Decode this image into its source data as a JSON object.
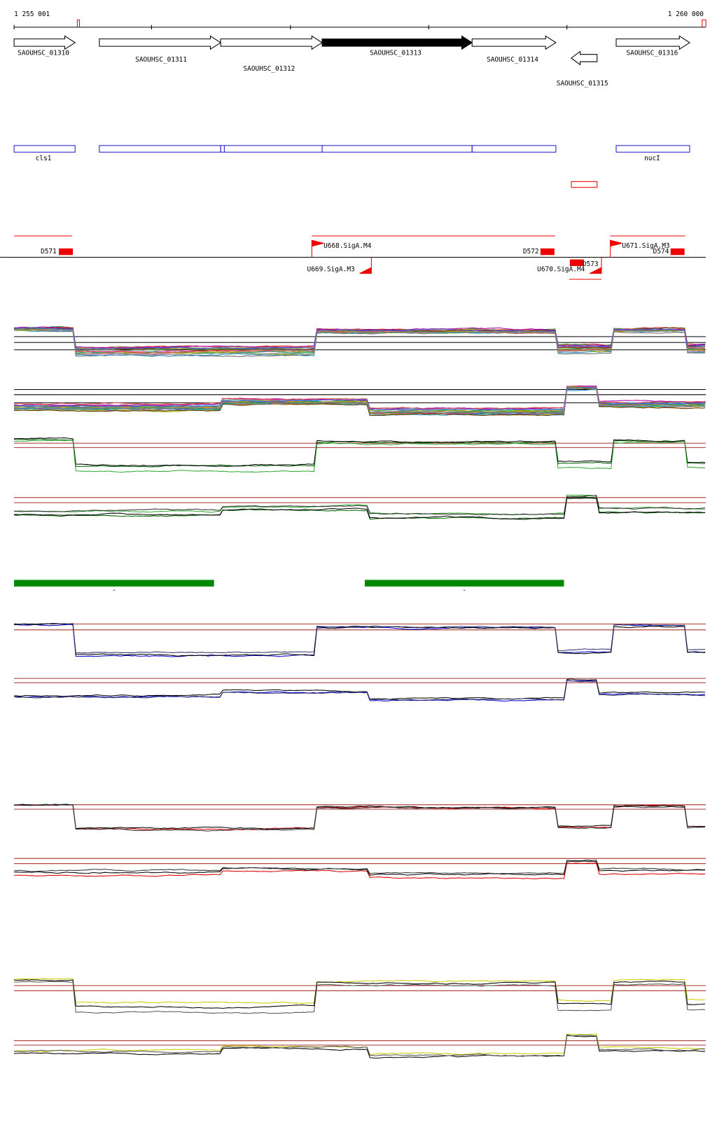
{
  "ruler": {
    "start_label": "1 255 001",
    "end_label": "1 260 000"
  },
  "genes": [
    "SAOUHSC_01310",
    "SAOUHSC_01311",
    "SAOUHSC_01312",
    "SAOUHSC_01313",
    "SAOUHSC_01314",
    "SAOUHSC_01315",
    "SAOUHSC_01316"
  ],
  "features": [
    "cls1",
    "nucI"
  ],
  "regulatory_sites": [
    "D571",
    "U668.SigA.M4",
    "D572",
    "U671.SigA.M3",
    "D574",
    "U669.SigA.M3",
    "U670.SigA.M4",
    "D573"
  ],
  "segments": [
    "-",
    "-"
  ]
}
